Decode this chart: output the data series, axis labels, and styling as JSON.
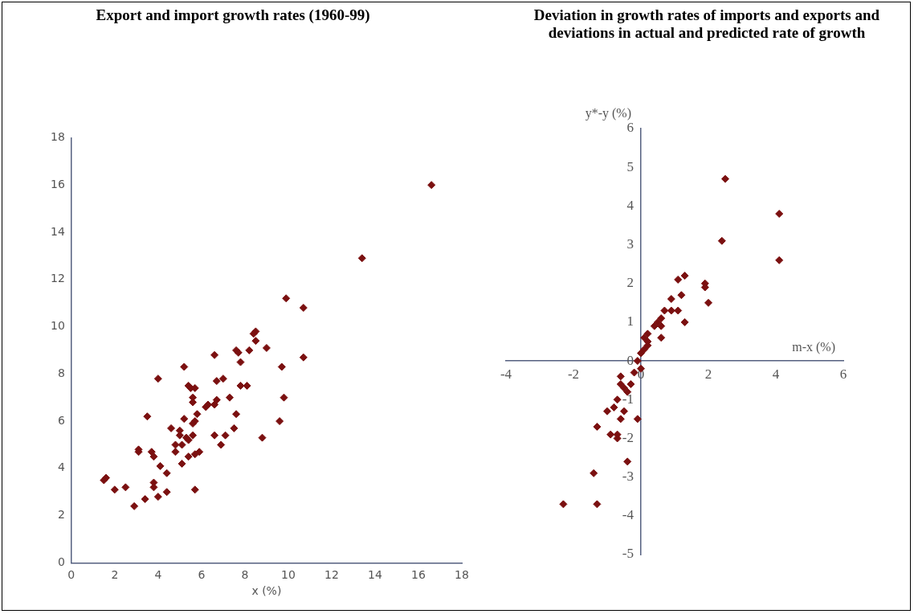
{
  "chart_data": [
    {
      "type": "scatter",
      "title": "Export and import growth rates (1960-99)",
      "xlabel": "x (%)",
      "color": "#7b1010",
      "marker": "diamond",
      "grid": false,
      "legend": false,
      "xlim": [
        0,
        18
      ],
      "ylim": [
        0,
        18
      ],
      "xticks": [
        0,
        2,
        4,
        6,
        8,
        10,
        12,
        14,
        16,
        18
      ],
      "yticks": [
        0,
        2,
        4,
        6,
        8,
        10,
        12,
        14,
        16,
        18
      ],
      "x": [
        16.6,
        13.4,
        9.9,
        10.7,
        8.5,
        8.4,
        8.5,
        9.0,
        8.2,
        7.6,
        7.7,
        6.6,
        10.7,
        7.8,
        9.7,
        5.2,
        4.0,
        6.7,
        7.0,
        5.4,
        5.5,
        5.7,
        7.8,
        8.1,
        7.3,
        9.8,
        5.6,
        5.6,
        6.7,
        6.6,
        6.3,
        6.2,
        7.6,
        5.8,
        5.7,
        3.5,
        5.2,
        9.6,
        5.6,
        4.6,
        7.5,
        5.0,
        5.0,
        5.6,
        6.6,
        7.1,
        5.3,
        5.4,
        8.8,
        5.1,
        6.9,
        4.8,
        3.1,
        3.1,
        3.7,
        4.8,
        5.9,
        5.7,
        3.8,
        5.4,
        5.1,
        4.1,
        4.4,
        1.6,
        1.5,
        3.8,
        3.8,
        2.0,
        2.5,
        5.7,
        4.4,
        4.0,
        3.4,
        2.9
      ],
      "values": [
        16.0,
        12.9,
        11.2,
        10.8,
        9.8,
        9.7,
        9.4,
        9.1,
        9.0,
        9.0,
        8.9,
        8.8,
        8.7,
        8.5,
        8.3,
        8.3,
        7.8,
        7.7,
        7.8,
        7.5,
        7.4,
        7.4,
        7.5,
        7.5,
        7.0,
        7.0,
        7.0,
        6.8,
        6.9,
        6.7,
        6.7,
        6.6,
        6.3,
        6.3,
        6.0,
        6.2,
        6.1,
        6.0,
        5.9,
        5.7,
        5.7,
        5.6,
        5.4,
        5.4,
        5.4,
        5.4,
        5.3,
        5.2,
        5.3,
        5.0,
        5.0,
        5.0,
        4.8,
        4.7,
        4.7,
        4.7,
        4.7,
        4.6,
        4.5,
        4.5,
        4.2,
        4.1,
        3.8,
        3.6,
        3.5,
        3.4,
        3.2,
        3.1,
        3.2,
        3.1,
        3.0,
        2.8,
        2.7,
        2.4
      ]
    },
    {
      "type": "scatter",
      "title": "Deviation in growth rates of imports and exports and deviations in actual and predicted rate of growth",
      "xlabel": "m-x (%)",
      "ylabel": "y*-y (%)",
      "color": "#7b1010",
      "marker": "diamond",
      "grid": false,
      "legend": false,
      "xlim": [
        -4,
        6
      ],
      "ylim": [
        -5,
        6
      ],
      "xticks": [
        -4,
        -2,
        0,
        2,
        4,
        6
      ],
      "yticks": [
        -5,
        -4,
        -3,
        -2,
        -1,
        0,
        1,
        2,
        3,
        4,
        5,
        6
      ],
      "x": [
        2.5,
        4.1,
        2.4,
        4.1,
        1.9,
        1.9,
        2.0,
        1.3,
        1.1,
        0.9,
        1.2,
        0.9,
        0.7,
        1.1,
        1.3,
        0.6,
        0.5,
        0.4,
        0.6,
        0.6,
        0.2,
        0.1,
        0.2,
        0.1,
        0.0,
        -0.1,
        0.2,
        -0.0,
        -0.2,
        -0.6,
        -0.6,
        -0.5,
        -0.3,
        -0.4,
        -0.7,
        -1.0,
        -0.8,
        -0.5,
        -0.6,
        -0.1,
        -1.3,
        -0.9,
        -0.7,
        -0.7,
        -0.4,
        -1.4,
        -2.3,
        -1.3
      ],
      "values": [
        4.7,
        3.8,
        3.1,
        2.6,
        2.0,
        1.9,
        1.5,
        2.2,
        2.1,
        1.6,
        1.7,
        1.3,
        1.3,
        1.3,
        1.0,
        1.1,
        1.0,
        0.9,
        0.6,
        0.9,
        0.7,
        0.6,
        0.4,
        0.3,
        0.2,
        0.0,
        0.5,
        -0.2,
        -0.3,
        -0.4,
        -0.6,
        -0.7,
        -0.6,
        -0.8,
        -1.0,
        -1.3,
        -1.2,
        -1.3,
        -1.5,
        -1.5,
        -1.7,
        -1.9,
        -2.0,
        -1.9,
        -2.6,
        -2.9,
        -3.7,
        -3.7
      ]
    }
  ]
}
